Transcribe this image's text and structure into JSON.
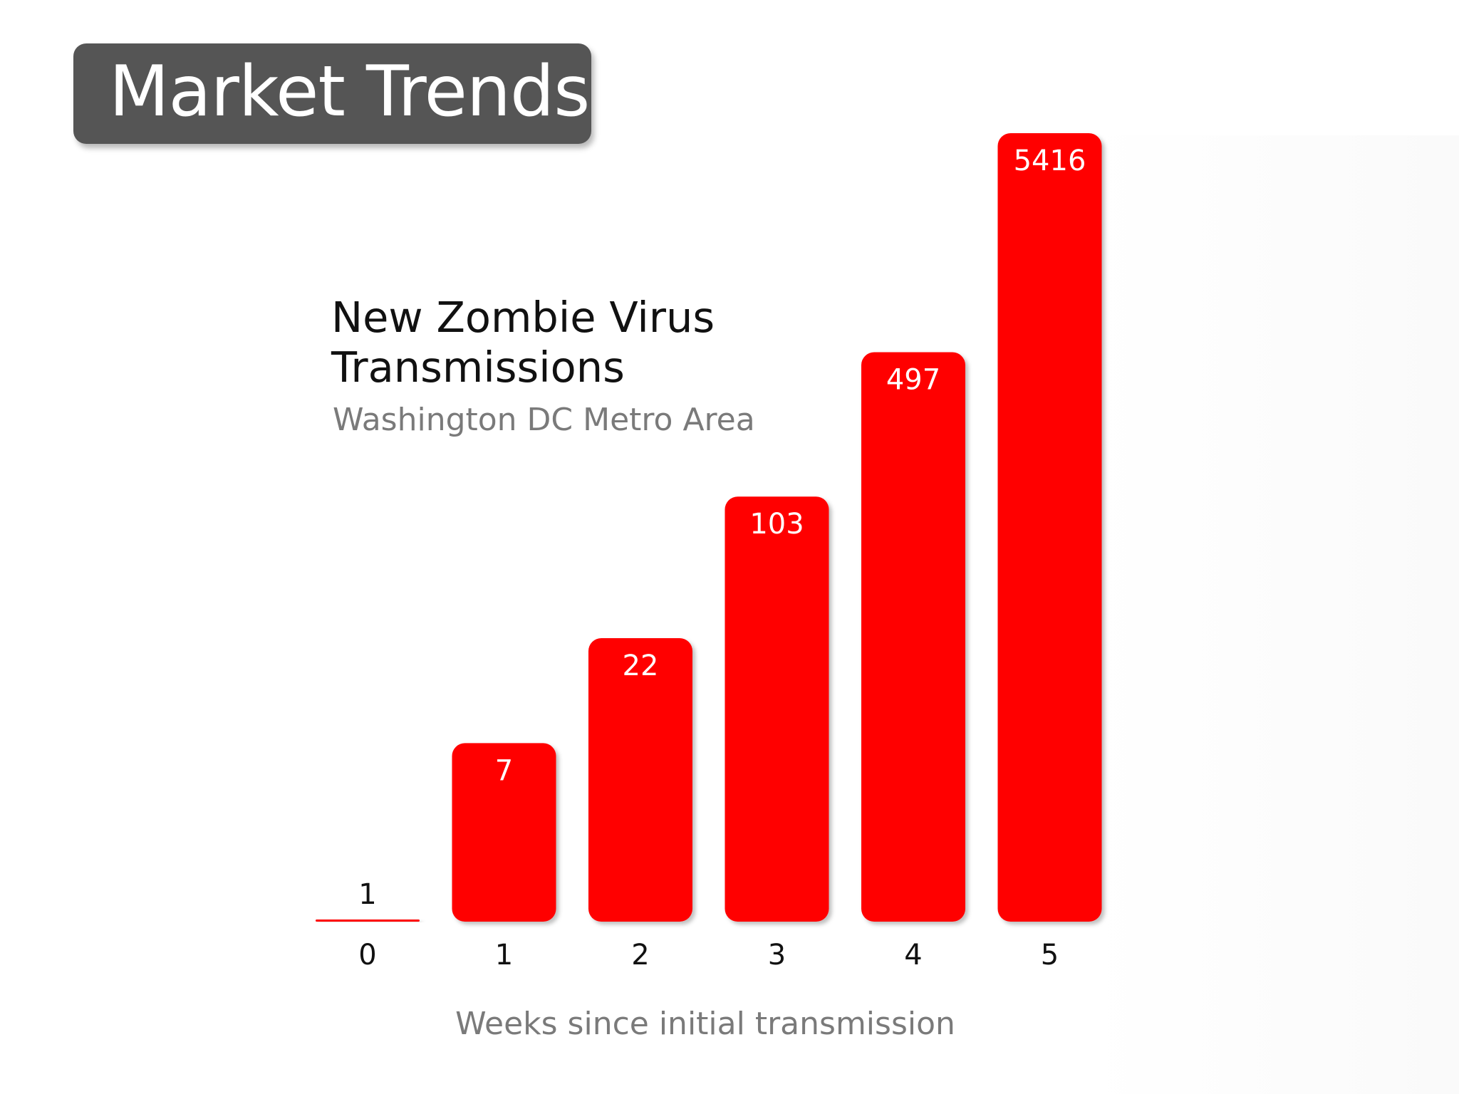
{
  "header": {
    "title": "Market Trends"
  },
  "colors": {
    "bar": "#ff0000",
    "header_bg": "#555555",
    "subtitle": "#7a7a7a"
  },
  "chart_data": {
    "type": "bar",
    "title": "New Zombie Virus Transmissions",
    "subtitle": "Washington DC Metro Area",
    "xlabel": "Weeks since initial transmission",
    "ylabel": "",
    "categories": [
      "0",
      "1",
      "2",
      "3",
      "4",
      "5"
    ],
    "values": [
      1,
      7,
      22,
      103,
      497,
      5416
    ],
    "data_labels": [
      "1",
      "7",
      "22",
      "103",
      "497",
      "5416"
    ],
    "y_scale": "log",
    "ylim": [
      1,
      5416
    ],
    "grid": false,
    "legend": false
  }
}
